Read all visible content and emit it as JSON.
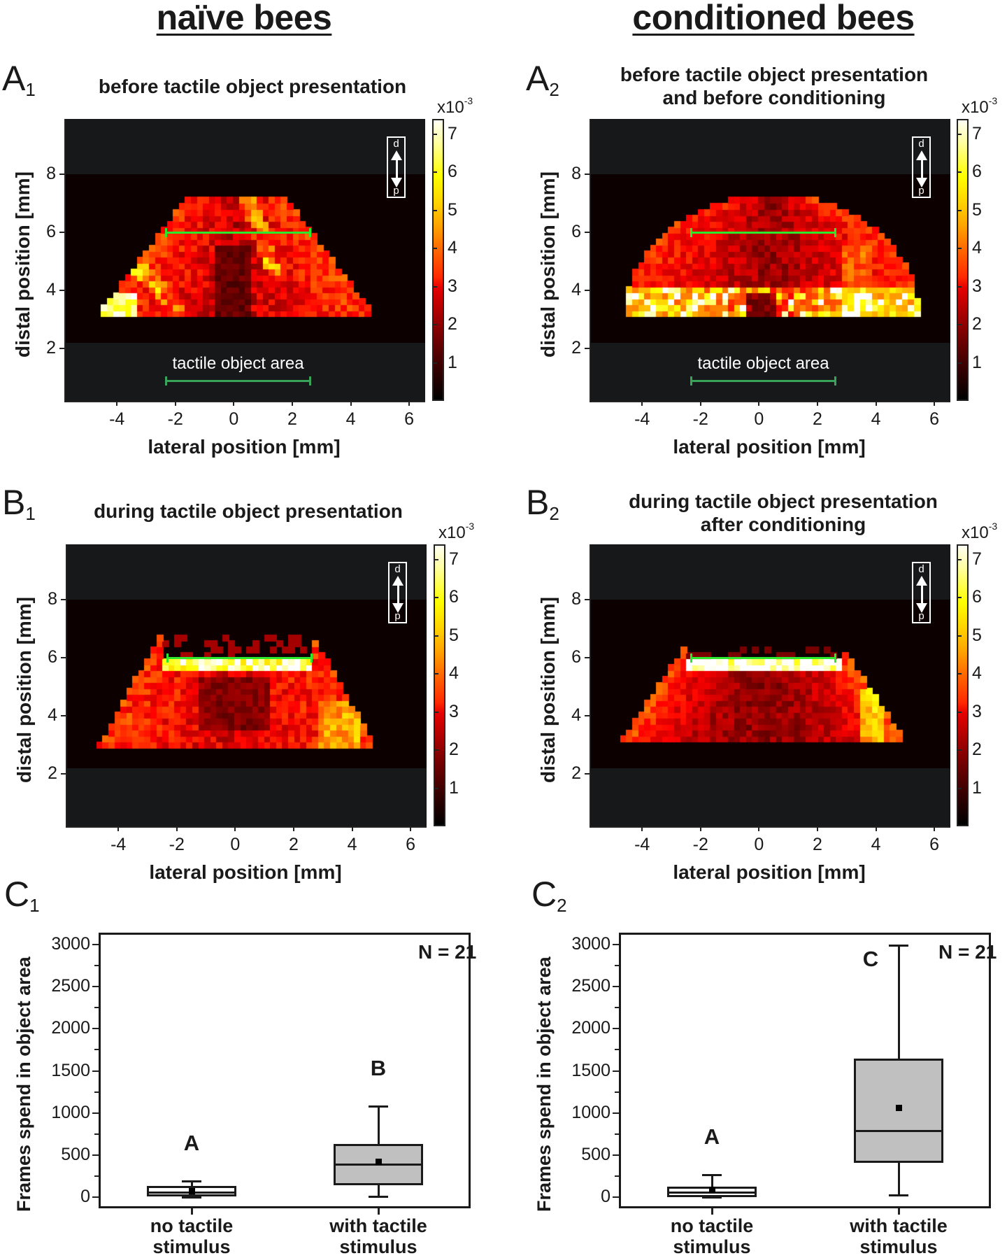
{
  "columns": {
    "left_title": "naïve bees",
    "right_title": "conditioned bees"
  },
  "panels": {
    "A1": {
      "letter": "A",
      "sub": "1",
      "title_lines": [
        "before tactile object presentation"
      ]
    },
    "A2": {
      "letter": "A",
      "sub": "2",
      "title_lines": [
        "before tactile object presentation",
        "and before conditioning"
      ]
    },
    "B1": {
      "letter": "B",
      "sub": "1",
      "title_lines": [
        "during tactile object presentation"
      ]
    },
    "B2": {
      "letter": "B",
      "sub": "2",
      "title_lines": [
        "during tactile object presentation",
        "after conditioning"
      ]
    },
    "C1": {
      "letter": "C",
      "sub": "1"
    },
    "C2": {
      "letter": "C",
      "sub": "2"
    }
  },
  "heatmap_common": {
    "xlabel": "lateral position [mm]",
    "ylabel": "distal position [mm]",
    "xticks": [
      "-4",
      "-2",
      "0",
      "2",
      "4",
      "6"
    ],
    "yticks": [
      "2",
      "4",
      "6",
      "8"
    ],
    "colorbar_exponent_base": "x10",
    "colorbar_exponent_power": "-3",
    "colorbar_ticks": [
      "1",
      "2",
      "3",
      "4",
      "5",
      "6",
      "7"
    ],
    "orientation": {
      "distal": "d",
      "proximal": "p"
    },
    "object_area_label": "tactile object area",
    "colors": {
      "background": "#171819",
      "recording_band": "#0c0000",
      "object_line": "#2ee82e",
      "object_marker": "#3aa35a"
    }
  },
  "boxplot_common": {
    "ylabel": "Frames spend  in object area",
    "yticks": [
      "0",
      "500",
      "1000",
      "1500",
      "2000",
      "2500",
      "3000"
    ],
    "categories": [
      [
        "no tactile",
        "stimulus"
      ],
      [
        "with tactile",
        "stimulus"
      ]
    ],
    "n_label": "N = 21",
    "box_fill_colors": [
      "#ffffff",
      "#c0c0c0"
    ]
  },
  "chart_data": [
    {
      "id": "A1",
      "type": "heatmap",
      "title": "before tactile object presentation",
      "xlabel": "lateral position [mm]",
      "ylabel": "distal position [mm]",
      "xlim": [
        -5.8,
        6.5
      ],
      "ylim": [
        0.2,
        9.9
      ],
      "recorded_band_y": [
        2.2,
        8.0
      ],
      "colorbar": {
        "label": "x10^-3",
        "range": [
          0,
          7.4
        ],
        "ticks": [
          1,
          2,
          3,
          4,
          5,
          6,
          7
        ],
        "colormap": "hot"
      },
      "object_line": {
        "x": [
          -2.4,
          2.6
        ],
        "y": 6.0
      },
      "object_area_marker": {
        "x": [
          -2.4,
          2.6
        ],
        "y": 0.9,
        "label": "tactile object area"
      },
      "distribution": "fan-shaped between y=3.2 and y=7.3, x=-4.6 to 4.7; hotspots at (-4,3.5)≈5, (-3,4.5)≈7, (-2,5.5)≈7, (1,5.7)≈7, (-0.7,3.9)≈7"
    },
    {
      "id": "A2",
      "type": "heatmap",
      "title": "before tactile object presentation and before conditioning",
      "xlabel": "lateral position [mm]",
      "ylabel": "distal position [mm]",
      "xlim": [
        -5.8,
        6.5
      ],
      "ylim": [
        0.2,
        9.9
      ],
      "recorded_band_y": [
        2.2,
        8.0
      ],
      "colorbar": {
        "label": "x10^-3",
        "range": [
          0,
          7.4
        ],
        "ticks": [
          1,
          2,
          3,
          4,
          5,
          6,
          7
        ],
        "colormap": "hot"
      },
      "object_line": {
        "x": [
          -2.4,
          2.6
        ],
        "y": 6.0
      },
      "object_area_marker": {
        "x": [
          -2.4,
          2.6
        ],
        "y": 0.9,
        "label": "tactile object area"
      },
      "distribution": "dome-shaped between y=3.2 and y=7.2, x=-4.6 to 5.4; brighter band along y≈3.4-4.0 with hotspots ≈5-6"
    },
    {
      "id": "B1",
      "type": "heatmap",
      "title": "during tactile object presentation",
      "xlabel": "lateral position [mm]",
      "ylabel": "distal position [mm]",
      "xlim": [
        -5.8,
        6.5
      ],
      "ylim": [
        0.2,
        9.9
      ],
      "recorded_band_y": [
        2.2,
        8.0
      ],
      "colorbar": {
        "label": "x10^-3",
        "range": [
          0,
          7.4
        ],
        "ticks": [
          1,
          2,
          3,
          4,
          5,
          6,
          7
        ],
        "colormap": "hot"
      },
      "object_line": {
        "x": [
          -2.4,
          2.6
        ],
        "y": 6.0
      },
      "distribution": "fan-shaped y=3.0-6.8; saturated (≈7+) row just below object line y≈5.8"
    },
    {
      "id": "B2",
      "type": "heatmap",
      "title": "during tactile object presentation after conditioning",
      "xlabel": "lateral position [mm]",
      "ylabel": "distal position [mm]",
      "xlim": [
        -5.8,
        6.5
      ],
      "ylim": [
        0.2,
        9.9
      ],
      "recorded_band_y": [
        2.2,
        8.0
      ],
      "colorbar": {
        "label": "x10^-3",
        "range": [
          0,
          7.4
        ],
        "ticks": [
          1,
          2,
          3,
          4,
          5,
          6,
          7
        ],
        "colormap": "hot"
      },
      "object_line": {
        "x": [
          -2.4,
          2.6
        ],
        "y": 6.0
      },
      "distribution": "trapezoid y=3.2-6.2, x=-4.7 to 4.9; saturated white band under object line y≈5.6-5.9; bright right edge ≈5"
    },
    {
      "id": "C1",
      "type": "box",
      "xlabel": "",
      "ylabel": "Frames spend  in object area",
      "categories": [
        "no tactile stimulus",
        "with tactile stimulus"
      ],
      "ylim": [
        -50,
        3200
      ],
      "n": "N = 21",
      "series": [
        {
          "name": "no tactile stimulus",
          "whisker_low": 0,
          "q1": 28,
          "median": 61,
          "q3": 124,
          "whisker_high": 193,
          "mean": 74,
          "fill": "#ffffff",
          "significance": "A"
        },
        {
          "name": "with tactile stimulus",
          "whisker_low": 5,
          "q1": 160,
          "median": 391,
          "q3": 625,
          "whisker_high": 1079,
          "mean": 427,
          "fill": "#c0c0c0",
          "significance": "B"
        }
      ]
    },
    {
      "id": "C2",
      "type": "box",
      "xlabel": "",
      "ylabel": "Frames spend  in object area",
      "categories": [
        "no tactile stimulus",
        "with tactile stimulus"
      ],
      "ylim": [
        -50,
        3200
      ],
      "n": "N = 21",
      "series": [
        {
          "name": "no tactile stimulus",
          "whisker_low": 0,
          "q1": 14,
          "median": 55,
          "q3": 119,
          "whisker_high": 265,
          "mean": 91,
          "fill": "#ffffff",
          "significance": "A"
        },
        {
          "name": "with tactile stimulus",
          "whisker_low": 22,
          "q1": 420,
          "median": 787,
          "q3": 1635,
          "whisker_high": 2992,
          "mean": 1066,
          "fill": "#c0c0c0",
          "significance": "C"
        }
      ]
    }
  ]
}
